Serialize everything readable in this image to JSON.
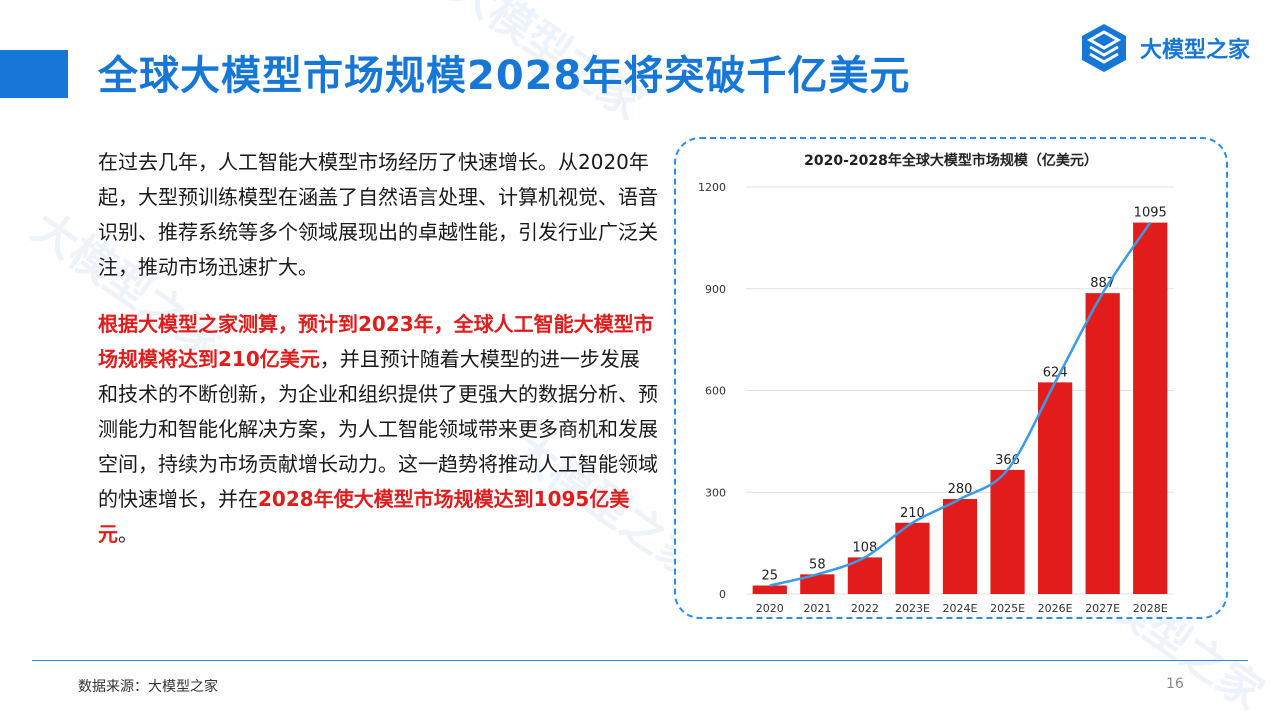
{
  "slide": {
    "title": "全球大模型市场规模2028年将突破千亿美元",
    "logo_text": "大模型之家",
    "logo_icon": "stacked-layers-icon",
    "paragraph1": "在过去几年，人工智能大模型市场经历了快速增长。从2020年起，大型预训练模型在涵盖了自然语言处理、计算机视觉、语音识别、推荐系统等多个领域展现出的卓越性能，引发行业广泛关注，推动市场迅速扩大。",
    "paragraph2": {
      "red_part1": "根据大模型之家测算，预计到2023年，全球人工智能大模型市场规模将达到210亿美元",
      "normal_part": "，并且预计随着大模型的进一步发展和技术的不断创新，为企业和组织提供了更强大的数据分析、预测能力和智能化解决方案，为人工智能领域带来更多商机和发展空间，持续为市场贡献增长动力。这一趋势将推动人工智能领域的快速增长，并在",
      "red_part2": "2028年使大模型市场规模达到1095亿美元",
      "end": "。"
    },
    "source": "数据来源：大模型之家",
    "page_number": "16",
    "watermark_text": "大模型之家"
  },
  "colors": {
    "accent": "#1677d6",
    "bar": "#e21b1b",
    "trend_line": "#3a9be8",
    "highlight_text": "#e21b1b"
  },
  "chart_data": {
    "type": "bar",
    "title": "2020-2028年全球大模型市场规模（亿美元）",
    "categories": [
      "2020",
      "2021",
      "2022",
      "2023E",
      "2024E",
      "2025E",
      "2026E",
      "2027E",
      "2028E"
    ],
    "values": [
      25,
      58,
      108,
      210,
      280,
      366,
      624,
      887,
      1095
    ],
    "ylim": [
      0,
      1200
    ],
    "yticks": [
      0,
      300,
      600,
      900,
      1200
    ],
    "trend_line": true,
    "grid": true,
    "data_labels": true
  }
}
